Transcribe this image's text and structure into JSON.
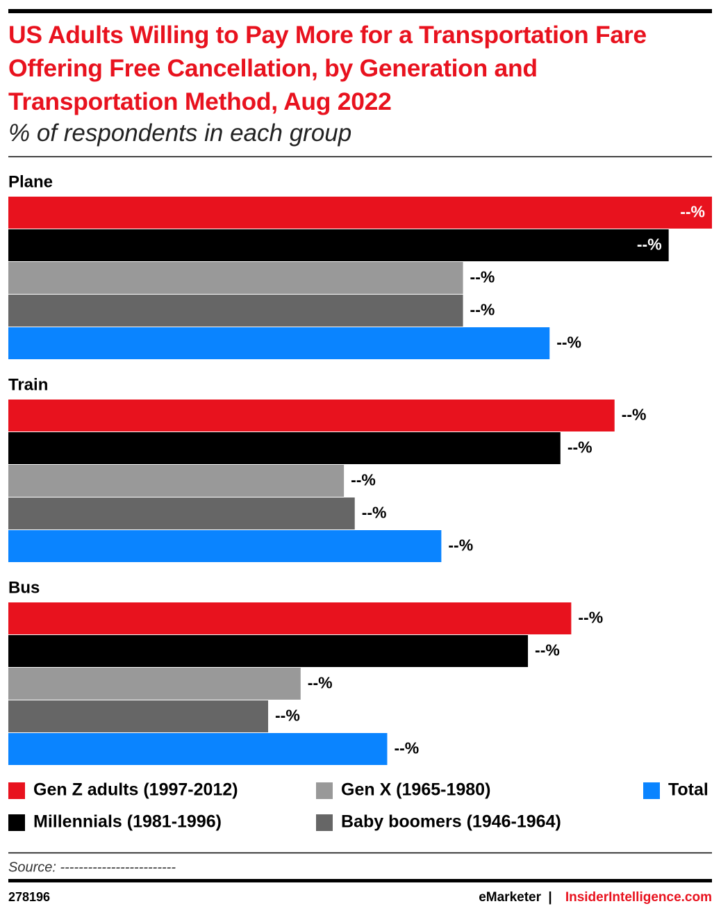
{
  "chart_data": {
    "type": "bar",
    "title": "US Adults Willing to Pay More for a Transportation Fare Offering Free Cancellation, by Generation and Transportation Method, Aug 2022",
    "subtitle": "% of respondents in each group",
    "categories": [
      "Plane",
      "Train",
      "Bus"
    ],
    "series": [
      {
        "name": "Gen Z adults (1997-2012)",
        "color": "#e8121e",
        "values": [
          65,
          56,
          52
        ],
        "value_labels": [
          "--%",
          "--%",
          "--%"
        ]
      },
      {
        "name": "Millennials (1981-1996)",
        "color": "#000000",
        "values": [
          61,
          51,
          48
        ],
        "value_labels": [
          "--%",
          "--%",
          "--%"
        ]
      },
      {
        "name": "Gen X (1965-1980)",
        "color": "#999999",
        "values": [
          42,
          31,
          27
        ],
        "value_labels": [
          "--%",
          "--%",
          "--%"
        ]
      },
      {
        "name": "Baby boomers (1946-1964)",
        "color": "#666666",
        "values": [
          42,
          32,
          24
        ],
        "value_labels": [
          "--%",
          "--%",
          "--%"
        ]
      },
      {
        "name": "Total",
        "color": "#0a84ff",
        "values": [
          50,
          40,
          35
        ],
        "value_labels": [
          "--%",
          "--%",
          "--%"
        ]
      }
    ],
    "source": "Source: -------------------------",
    "chart_id": "278196",
    "brand": "eMarketer",
    "separator": "|",
    "brand2": "InsiderIntelligence.com"
  }
}
